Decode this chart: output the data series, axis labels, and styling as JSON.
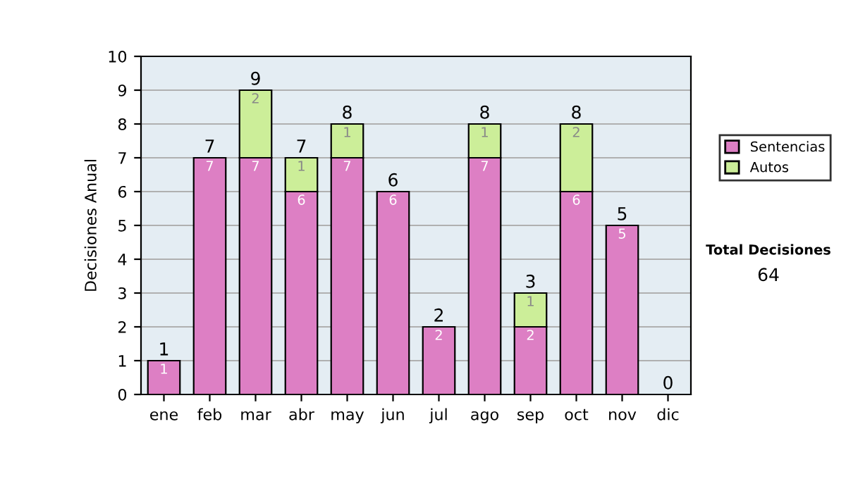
{
  "chart_data": {
    "type": "bar",
    "stacked": true,
    "ylabel": "Decisiones Anual",
    "categories": [
      "ene",
      "feb",
      "mar",
      "abr",
      "may",
      "jun",
      "jul",
      "ago",
      "sep",
      "oct",
      "nov",
      "dic"
    ],
    "series": [
      {
        "name": "Sentencias",
        "color": "#dd7fc4",
        "values": [
          1,
          7,
          7,
          6,
          7,
          6,
          2,
          7,
          2,
          6,
          5,
          0
        ],
        "value_labels": [
          "1",
          "7",
          "7",
          "6",
          "7",
          "6",
          "2",
          "7",
          "2",
          "6",
          "5",
          null
        ]
      },
      {
        "name": "Autos",
        "color": "#ccee99",
        "values": [
          0,
          0,
          2,
          1,
          1,
          0,
          0,
          1,
          1,
          2,
          0,
          0
        ],
        "value_labels": [
          null,
          null,
          "2",
          "1",
          "1",
          null,
          null,
          "1",
          "1",
          "2",
          null,
          null
        ]
      }
    ],
    "totals": [
      "1",
      "7",
      "9",
      "7",
      "8",
      "6",
      "2",
      "8",
      "3",
      "8",
      "5",
      "0"
    ],
    "ylim": [
      0,
      10
    ],
    "yticks": [
      0,
      1,
      2,
      3,
      4,
      5,
      6,
      7,
      8,
      9,
      10
    ],
    "grid": "y",
    "legend": "right",
    "annotations": [
      "Total Decisiones",
      "64"
    ]
  }
}
